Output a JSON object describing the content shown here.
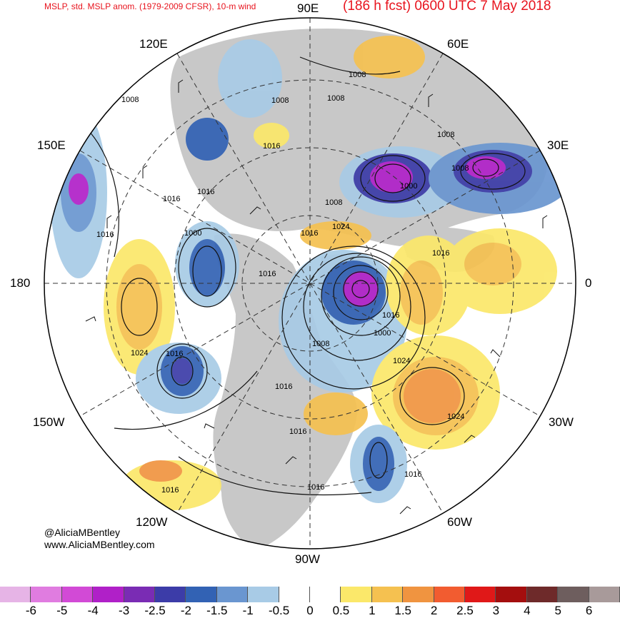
{
  "header": {
    "left_title": "MSLP, std. MSLP anom. (1979-2009 CFSR), 10-m wind",
    "right_title": "(186 h fcst) 0600 UTC 7 May 2018"
  },
  "longitude_labels": {
    "lon_90e": "90E",
    "lon_60e": "60E",
    "lon_120e": "120E",
    "lon_150e": "150E",
    "lon_30e": "30E",
    "lon_180": "180",
    "lon_0": "0",
    "lon_150w": "150W",
    "lon_30w": "30W",
    "lon_120w": "120W",
    "lon_60w": "60W",
    "lon_90w": "90W"
  },
  "isobar_labels": [
    "1008",
    "1008",
    "1008",
    "1008",
    "1016",
    "1008",
    "1000",
    "1008",
    "1016",
    "1008",
    "1016",
    "1000",
    "1016",
    "1016",
    "1024",
    "1024",
    "1016",
    "1000",
    "1008",
    "1024",
    "1016",
    "1016",
    "1016",
    "1024",
    "1016",
    "1016",
    "1016",
    "1016",
    "1016"
  ],
  "credits": {
    "handle": "@AliciaMBentley",
    "site": "www.AliciaMBentley.com"
  },
  "colorbar": {
    "labels": [
      "-6",
      "-5",
      "-4",
      "-3",
      "-2.5",
      "-2",
      "-1.5",
      "-1",
      "-0.5",
      "0",
      "0.5",
      "1",
      "1.5",
      "2",
      "2.5",
      "3",
      "4",
      "5",
      "6"
    ],
    "colors": [
      "#e6b4e6",
      "#e07ce0",
      "#d24ad6",
      "#b020c8",
      "#7a2cb4",
      "#3c3ca8",
      "#3262b4",
      "#6a96d0",
      "#a8cbe6",
      "#ffffff",
      "#ffffff",
      "#fbe86a",
      "#f5c150",
      "#f09440",
      "#f25c30",
      "#e01818",
      "#a40e0e",
      "#6e2a2a",
      "#6e5e5e",
      "#a89a9a"
    ]
  },
  "colors": {
    "title": "#e8141e",
    "land": "#c8c8c8",
    "ocean": "#ffffff"
  }
}
